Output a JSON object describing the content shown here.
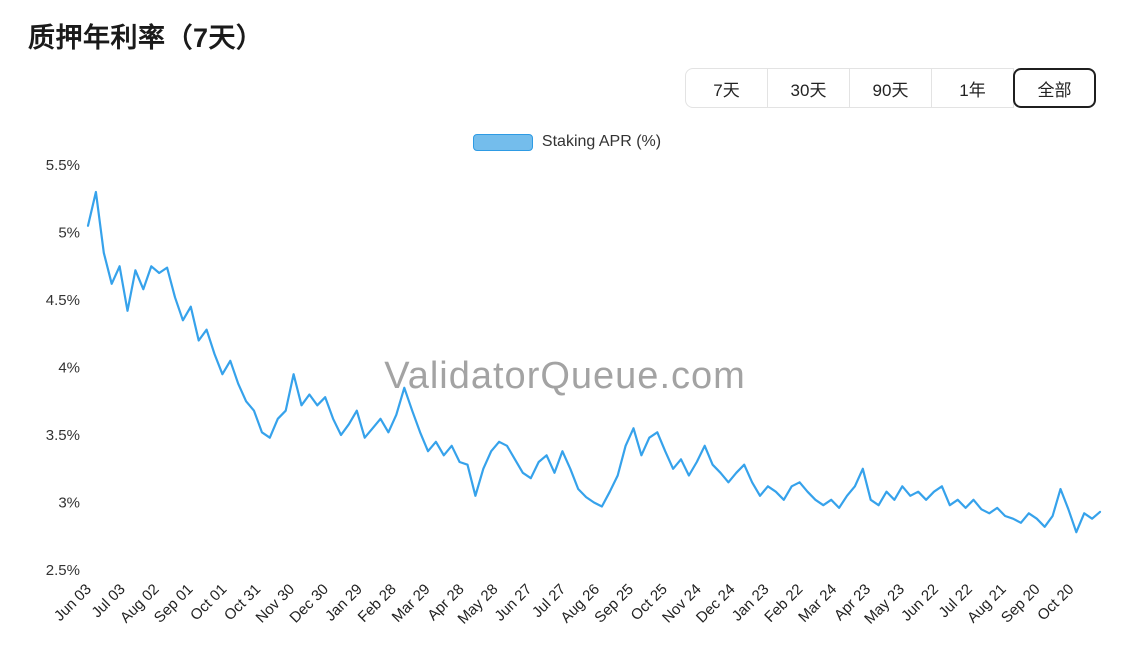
{
  "page": {
    "title": "质押年利率（7天）"
  },
  "ranges": {
    "items": [
      {
        "key": "7d",
        "label": "7天",
        "selected": false
      },
      {
        "key": "30d",
        "label": "30天",
        "selected": false
      },
      {
        "key": "90d",
        "label": "90天",
        "selected": false
      },
      {
        "key": "1y",
        "label": "1年",
        "selected": false
      },
      {
        "key": "all",
        "label": "全部",
        "selected": true
      }
    ]
  },
  "legend": {
    "label": "Staking APR (%)",
    "swatch_fill": "#74bdec",
    "swatch_border": "#2e9be4"
  },
  "chart_data": {
    "type": "line",
    "title": "质押年利率（7天）",
    "watermark": "ValidatorQueue.com",
    "watermark_color": "#a3a3a3",
    "ylim": [
      2.5,
      5.5
    ],
    "grid": false,
    "legend_position": "top-center",
    "yticks": {
      "values": [
        5.5,
        5.0,
        4.5,
        4.0,
        3.5,
        3.0,
        2.5
      ],
      "labels": [
        "5.5%",
        "5%",
        "4.5%",
        "4%",
        "3.5%",
        "3%",
        "2.5%"
      ]
    },
    "xticks": {
      "interval_days": 30,
      "labels": [
        "Jun 03",
        "Jul 03",
        "Aug 02",
        "Sep 01",
        "Oct 01",
        "Oct 31",
        "Nov 30",
        "Dec 30",
        "Jan 29",
        "Feb 28",
        "Mar 29",
        "Apr 28",
        "May 28",
        "Jun 27",
        "Jul 27",
        "Aug 26",
        "Sep 25",
        "Oct 25",
        "Nov 24",
        "Dec 24",
        "Jan 23",
        "Feb 22",
        "Mar 24",
        "Apr 23",
        "May 23",
        "Jun 22",
        "Jul 22",
        "Aug 21",
        "Sep 20",
        "Oct 20"
      ]
    },
    "series": [
      {
        "name": "Staking APR (%)",
        "color": "#36a2eb",
        "x_step_days": 7,
        "values": [
          5.05,
          5.3,
          4.85,
          4.62,
          4.75,
          4.42,
          4.72,
          4.58,
          4.75,
          4.7,
          4.74,
          4.52,
          4.35,
          4.45,
          4.2,
          4.28,
          4.1,
          3.95,
          4.05,
          3.88,
          3.75,
          3.68,
          3.52,
          3.48,
          3.62,
          3.68,
          3.95,
          3.72,
          3.8,
          3.72,
          3.78,
          3.62,
          3.5,
          3.58,
          3.68,
          3.48,
          3.55,
          3.62,
          3.52,
          3.65,
          3.85,
          3.68,
          3.52,
          3.38,
          3.45,
          3.35,
          3.42,
          3.3,
          3.28,
          3.05,
          3.25,
          3.38,
          3.45,
          3.42,
          3.32,
          3.22,
          3.18,
          3.3,
          3.35,
          3.22,
          3.38,
          3.25,
          3.1,
          3.04,
          3.0,
          2.97,
          3.08,
          3.2,
          3.42,
          3.55,
          3.35,
          3.48,
          3.52,
          3.38,
          3.25,
          3.32,
          3.2,
          3.3,
          3.42,
          3.28,
          3.22,
          3.15,
          3.22,
          3.28,
          3.15,
          3.05,
          3.12,
          3.08,
          3.02,
          3.12,
          3.15,
          3.08,
          3.02,
          2.98,
          3.02,
          2.96,
          3.05,
          3.12,
          3.25,
          3.02,
          2.98,
          3.08,
          3.02,
          3.12,
          3.05,
          3.08,
          3.02,
          3.08,
          3.12,
          2.98,
          3.02,
          2.96,
          3.02,
          2.95,
          2.92,
          2.96,
          2.9,
          2.88,
          2.85,
          2.92,
          2.88,
          2.82,
          2.9,
          3.1,
          2.95,
          2.78,
          2.92,
          2.88,
          2.93
        ]
      }
    ]
  }
}
